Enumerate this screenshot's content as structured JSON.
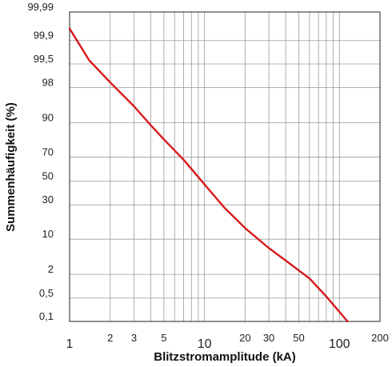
{
  "chart_data": {
    "type": "line",
    "title": "",
    "xlabel": "Blitzstromamplitude (kA)",
    "ylabel": "Summenhäufigkeit (%)",
    "x_scale": "log",
    "y_scale": "probability",
    "xlim": [
      1,
      200
    ],
    "ylim": [
      0.1,
      99.99
    ],
    "grid": true,
    "x_gridlines": [
      2,
      3,
      4,
      5,
      6,
      7,
      8,
      9,
      10,
      20,
      30,
      40,
      50,
      60,
      70,
      80,
      90,
      100,
      200
    ],
    "x_ticks": [
      {
        "value": 1,
        "label": "1"
      },
      {
        "value": 2,
        "label": "2"
      },
      {
        "value": 3,
        "label": "3"
      },
      {
        "value": 5,
        "label": "5"
      },
      {
        "value": 10,
        "label": "10"
      },
      {
        "value": 20,
        "label": "20"
      },
      {
        "value": 30,
        "label": "30"
      },
      {
        "value": 50,
        "label": "50"
      },
      {
        "value": 100,
        "label": "100"
      },
      {
        "value": 200,
        "label": "200"
      }
    ],
    "y_ticks": [
      {
        "value": 99.99,
        "label": "99,99"
      },
      {
        "value": 99.9,
        "label": "99,9"
      },
      {
        "value": 99.5,
        "label": "99,5"
      },
      {
        "value": 98,
        "label": "98"
      },
      {
        "value": 90,
        "label": "90"
      },
      {
        "value": 70,
        "label": "70"
      },
      {
        "value": 50,
        "label": "50"
      },
      {
        "value": 30,
        "label": "30"
      },
      {
        "value": 10,
        "label": "10"
      },
      {
        "value": 2,
        "label": "2"
      },
      {
        "value": 0.5,
        "label": "0,5"
      },
      {
        "value": 0.1,
        "label": "0,1"
      }
    ],
    "series": [
      {
        "color": "#d7191c",
        "points": [
          {
            "x": 1,
            "y": 99.96
          },
          {
            "x": 1.4,
            "y": 99.6
          },
          {
            "x": 2,
            "y": 98.5
          },
          {
            "x": 3,
            "y": 95
          },
          {
            "x": 4,
            "y": 89
          },
          {
            "x": 5,
            "y": 82
          },
          {
            "x": 7,
            "y": 68
          },
          {
            "x": 10,
            "y": 47
          },
          {
            "x": 14,
            "y": 28
          },
          {
            "x": 20,
            "y": 15
          },
          {
            "x": 30,
            "y": 7
          },
          {
            "x": 40,
            "y": 4
          },
          {
            "x": 60,
            "y": 1.6
          },
          {
            "x": 80,
            "y": 0.55
          },
          {
            "x": 115,
            "y": 0.1
          }
        ]
      }
    ]
  }
}
